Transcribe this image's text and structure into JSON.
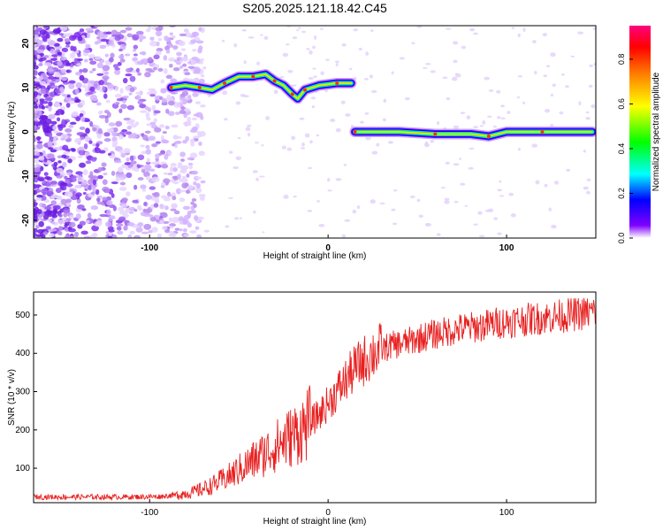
{
  "title": "S205.2025.121.18.42.C45",
  "chart_data": [
    {
      "type": "heatmap",
      "xlabel": "Height of straight line (km)",
      "ylabel": "Frequency (Hz)",
      "xlim": [
        -165,
        150
      ],
      "ylim": [
        -24,
        24
      ],
      "xticks": [
        -100,
        0,
        100
      ],
      "yticks": [
        -20,
        -10,
        0,
        10,
        20
      ],
      "grid": false,
      "colorbar": {
        "label": "Normalized spectral amplitude",
        "range": [
          0,
          0.95
        ],
        "ticks": [
          0.0,
          0.2,
          0.4,
          0.6,
          0.8
        ],
        "colormap": [
          "#ffffff",
          "#7f00ff",
          "#0000ff",
          "#00ffff",
          "#00ff00",
          "#ffff00",
          "#ff8000",
          "#ff0000",
          "#ff0080"
        ]
      },
      "ridge": [
        {
          "x": -88,
          "y": 10.0
        },
        {
          "x": -80,
          "y": 10.5
        },
        {
          "x": -72,
          "y": 10.0
        },
        {
          "x": -65,
          "y": 9.5
        },
        {
          "x": -58,
          "y": 11.0
        },
        {
          "x": -50,
          "y": 12.5
        },
        {
          "x": -42,
          "y": 12.5
        },
        {
          "x": -35,
          "y": 13.0
        },
        {
          "x": -30,
          "y": 11.5
        },
        {
          "x": -25,
          "y": 10.5
        },
        {
          "x": -20,
          "y": 8.5
        },
        {
          "x": -17,
          "y": 7.5
        },
        {
          "x": -13,
          "y": 9.5
        },
        {
          "x": -5,
          "y": 10.5
        },
        {
          "x": 5,
          "y": 11.0
        },
        {
          "x": 13,
          "y": 11.0
        },
        {
          "x": 15,
          "y": 0.0
        },
        {
          "x": 40,
          "y": 0.0
        },
        {
          "x": 60,
          "y": -0.5
        },
        {
          "x": 80,
          "y": -0.5
        },
        {
          "x": 90,
          "y": -1.0
        },
        {
          "x": 100,
          "y": 0.0
        },
        {
          "x": 120,
          "y": 0.0
        },
        {
          "x": 148,
          "y": 0.0
        }
      ]
    },
    {
      "type": "line",
      "xlabel": "Height of straight line (km)",
      "ylabel": "SNR (10 * v/v)",
      "xlim": [
        -165,
        150
      ],
      "ylim": [
        10,
        560
      ],
      "xticks": [
        -100,
        0,
        100
      ],
      "yticks": [
        100,
        200,
        300,
        400,
        500
      ],
      "grid": false,
      "series": [
        {
          "color": "#e82020",
          "x": [
            -165,
            -150,
            -130,
            -110,
            -95,
            -85,
            -75,
            -65,
            -55,
            -45,
            -35,
            -25,
            -15,
            -5,
            5,
            15,
            25,
            35,
            45,
            55,
            65,
            75,
            85,
            95,
            105,
            115,
            125,
            135,
            145,
            150
          ],
          "y": [
            25,
            25,
            25,
            25,
            26,
            30,
            38,
            55,
            80,
            110,
            140,
            170,
            200,
            240,
            300,
            360,
            400,
            420,
            430,
            445,
            455,
            465,
            470,
            480,
            485,
            490,
            495,
            500,
            505,
            510
          ]
        }
      ]
    }
  ]
}
